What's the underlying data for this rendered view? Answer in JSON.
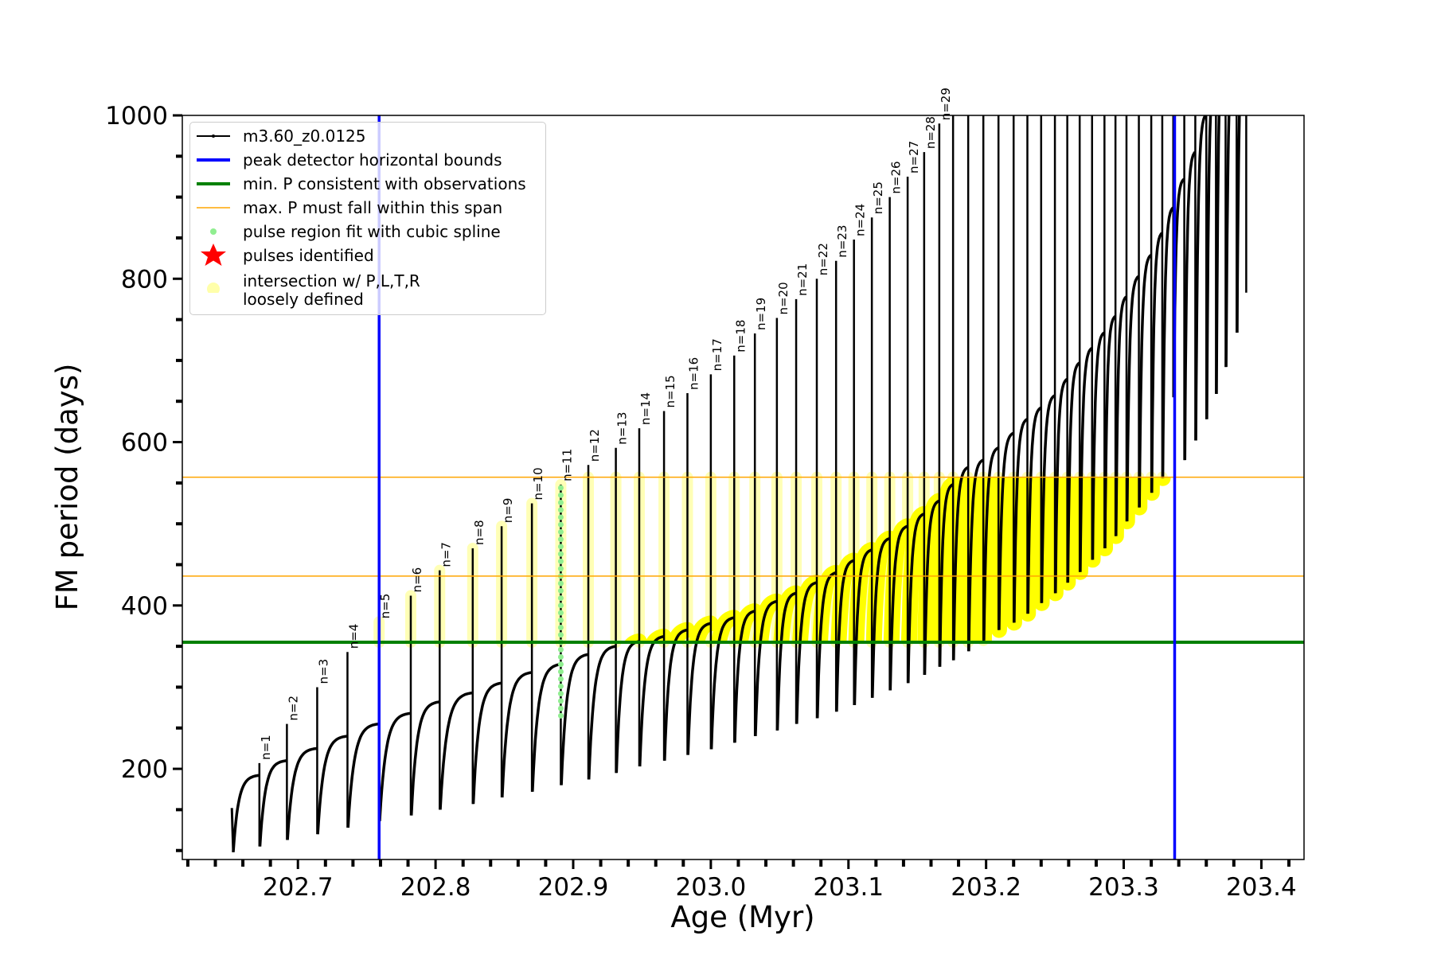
{
  "chart_data": {
    "type": "line",
    "xlabel": "Age (Myr)",
    "ylabel": "FM period (days)",
    "xlim": [
      202.616,
      203.431
    ],
    "ylim": [
      89,
      1000
    ],
    "xticks": [
      202.7,
      202.8,
      202.9,
      203.0,
      203.1,
      203.2,
      203.3,
      203.4
    ],
    "xtick_labels": [
      "202.7",
      "202.8",
      "202.9",
      "203.0",
      "203.1",
      "203.2",
      "203.3",
      "203.4"
    ],
    "yticks": [
      200,
      400,
      600,
      800,
      1000
    ],
    "ytick_labels": [
      "200",
      "400",
      "600",
      "800",
      "1000"
    ],
    "grid": false,
    "legend_position": "top-left",
    "legend": [
      {
        "label": "m3.60_z0.0125",
        "symbol": "line-dot",
        "color": "#000000"
      },
      {
        "label": "peak detector horizontal bounds",
        "symbol": "line-thick",
        "color": "#0000ff"
      },
      {
        "label": "min. P consistent with observations",
        "symbol": "line-thick",
        "color": "#008000"
      },
      {
        "label": "max. P must fall within this span",
        "symbol": "line-thin",
        "color": "#ffa500"
      },
      {
        "label": "pulse region fit with cubic spline",
        "symbol": "dot",
        "color": "#90ee90"
      },
      {
        "label": "pulses identified",
        "symbol": "star",
        "color": "#ff0000"
      },
      {
        "label": "intersection w/ P,L,T,R\nloosely defined",
        "symbol": "circle",
        "color": "#ffffaa"
      }
    ],
    "vertical_lines": {
      "name": "peak detector horizontal bounds",
      "x": [
        202.759,
        203.337
      ],
      "color": "#0000ff"
    },
    "min_period_line": {
      "y": 355,
      "color": "#008000"
    },
    "max_period_span": {
      "y": [
        436,
        557
      ],
      "color": "#ffa500"
    },
    "series_start": {
      "age": 202.652,
      "value": 152,
      "dip": 98
    },
    "pulse_columns": [
      "age",
      "quiescent_before",
      "peak",
      "post_dip"
    ],
    "pulses": [
      [
        202.672,
        192,
        207,
        105
      ],
      [
        202.692,
        210,
        255,
        113
      ],
      [
        202.714,
        225,
        300,
        120
      ],
      [
        202.736,
        240,
        343,
        128
      ],
      [
        202.759,
        255,
        380,
        136
      ],
      [
        202.782,
        268,
        412,
        143
      ],
      [
        202.803,
        282,
        443,
        150
      ],
      [
        202.827,
        293,
        470,
        157
      ],
      [
        202.848,
        305,
        497,
        165
      ],
      [
        202.87,
        318,
        525,
        172
      ],
      [
        202.891,
        328,
        548,
        180
      ],
      [
        202.911,
        340,
        572,
        187
      ],
      [
        202.931,
        350,
        593,
        195
      ],
      [
        202.948,
        356,
        617,
        203
      ],
      [
        202.966,
        362,
        638,
        210
      ],
      [
        202.983,
        370,
        660,
        217
      ],
      [
        203.0,
        378,
        683,
        224
      ],
      [
        203.017,
        385,
        706,
        232
      ],
      [
        203.032,
        393,
        733,
        240
      ],
      [
        203.048,
        405,
        752,
        247
      ],
      [
        203.062,
        415,
        775,
        255
      ],
      [
        203.077,
        428,
        800,
        262
      ],
      [
        203.091,
        440,
        822,
        270
      ],
      [
        203.104,
        455,
        848,
        278
      ],
      [
        203.117,
        468,
        875,
        287
      ],
      [
        203.13,
        482,
        900,
        296
      ],
      [
        203.143,
        497,
        925,
        305
      ],
      [
        203.155,
        512,
        955,
        315
      ],
      [
        203.166,
        528,
        990,
        325
      ],
      [
        203.176,
        548,
        1100,
        333
      ],
      [
        203.187,
        569,
        1100,
        344
      ],
      [
        203.198,
        578,
        1100,
        357
      ],
      [
        203.209,
        593,
        1100,
        370
      ],
      [
        203.22,
        611,
        1100,
        379
      ],
      [
        203.23,
        628,
        1100,
        390
      ],
      [
        203.24,
        642,
        1100,
        403
      ],
      [
        203.25,
        657,
        1100,
        415
      ],
      [
        203.259,
        677,
        1100,
        428
      ],
      [
        203.268,
        697,
        1100,
        441
      ],
      [
        203.277,
        715,
        1100,
        456
      ],
      [
        203.286,
        734,
        1100,
        470
      ],
      [
        203.294,
        754,
        1100,
        485
      ],
      [
        203.302,
        778,
        1100,
        503
      ],
      [
        203.311,
        803,
        1100,
        520
      ],
      [
        203.32,
        829,
        1100,
        538
      ],
      [
        203.328,
        856,
        1100,
        556
      ],
      [
        203.336,
        887,
        1100,
        655
      ],
      [
        203.344,
        922,
        1100,
        578
      ],
      [
        203.352,
        955,
        1100,
        602
      ],
      [
        203.36,
        1001,
        1100,
        628
      ],
      [
        203.367,
        1050,
        1100,
        659
      ],
      [
        203.374,
        1100,
        1100,
        692
      ],
      [
        203.382,
        1100,
        1100,
        734
      ],
      [
        203.389,
        1100,
        1100,
        783
      ]
    ],
    "pulse_labels": [
      "n=1",
      "n=2",
      "n=3",
      "n=4",
      "n=5",
      "n=6",
      "n=7",
      "n=8",
      "n=9",
      "n=10",
      "n=11",
      "n=12",
      "n=13",
      "n=14",
      "n=15",
      "n=16",
      "n=17",
      "n=18",
      "n=19",
      "n=20",
      "n=21",
      "n=22",
      "n=23",
      "n=24",
      "n=25",
      "n=26",
      "n=27",
      "n=28",
      "n=29"
    ],
    "spline_fit_pulse": {
      "age": 202.891,
      "range": [
        265,
        545
      ],
      "color": "#90ee90"
    },
    "intersection_color": "#ffff00",
    "loose_color": "#ffffaa"
  }
}
